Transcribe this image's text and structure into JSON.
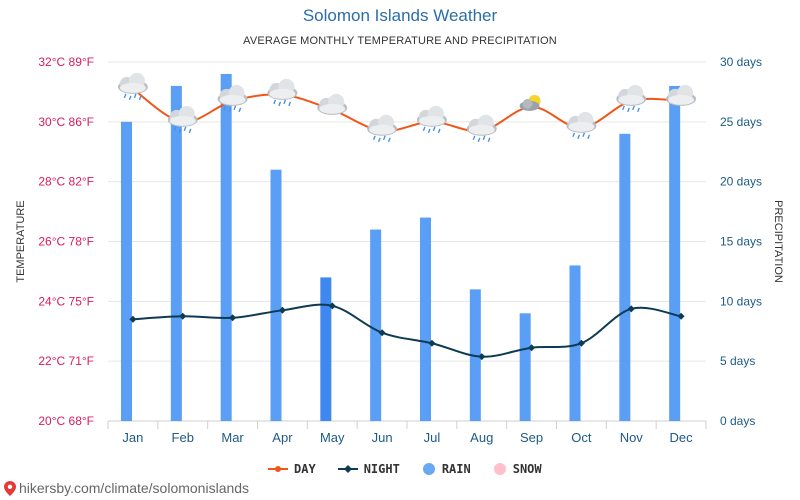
{
  "page": {
    "title": "Solomon Islands Weather",
    "subtitle": "AVERAGE MONTHLY TEMPERATURE AND PRECIPITATION",
    "source": "hikersby.com/climate/solomonislands"
  },
  "legend": {
    "day": "DAY",
    "night": "NIGHT",
    "rain": "RAIN",
    "snow": "SNOW"
  },
  "colors": {
    "day": "#f0561a",
    "night": "#0c3b52",
    "rain": "#5a9ef5",
    "rain_highlight": "#3f88f0",
    "snow": "#ffb6c1",
    "left_axis": "#d81b60",
    "right_axis": "#1e5a85",
    "title": "#2b6ea8",
    "grid": "#e6e6e6"
  },
  "chart_data": {
    "type": "bar+line",
    "categories": [
      "Jan",
      "Feb",
      "Mar",
      "Apr",
      "May",
      "Jun",
      "Jul",
      "Aug",
      "Sep",
      "Oct",
      "Nov",
      "Dec"
    ],
    "ylabel_left": "TEMPERATURE",
    "ylabel_right": "PRECIPITATION",
    "ylim_left": [
      20,
      32
    ],
    "ylim_right": [
      0,
      30
    ],
    "left_ticks": [
      "20°C 68°F",
      "22°C 71°F",
      "24°C 75°F",
      "26°C 78°F",
      "28°C 82°F",
      "30°C 86°F",
      "32°C 89°F"
    ],
    "right_ticks": [
      "0 days",
      "5 days",
      "10 days",
      "15 days",
      "20 days",
      "25 days",
      "30 days"
    ],
    "series": [
      {
        "name": "RAIN",
        "kind": "bar",
        "unit": "days",
        "values": [
          25,
          28,
          29,
          21,
          12,
          16,
          17,
          11,
          9,
          13,
          24,
          28
        ]
      },
      {
        "name": "DAY",
        "kind": "line",
        "unit": "°C",
        "values": [
          31.1,
          30.0,
          30.7,
          30.9,
          30.4,
          29.7,
          30.0,
          29.7,
          30.5,
          29.8,
          30.7,
          30.7
        ]
      },
      {
        "name": "NIGHT",
        "kind": "line",
        "unit": "°C",
        "values": [
          23.4,
          23.5,
          23.45,
          23.7,
          23.85,
          22.95,
          22.6,
          22.15,
          22.45,
          22.6,
          23.75,
          23.5
        ]
      }
    ],
    "weather_icons": [
      "rain-cloud",
      "rain-cloud",
      "rain-cloud",
      "rain-cloud",
      "cloud",
      "rain-cloud",
      "rain-cloud",
      "rain-cloud",
      "partly-sunny",
      "rain-cloud",
      "rain-cloud",
      "cloud"
    ],
    "grid": true,
    "legend_position": "bottom-center"
  }
}
